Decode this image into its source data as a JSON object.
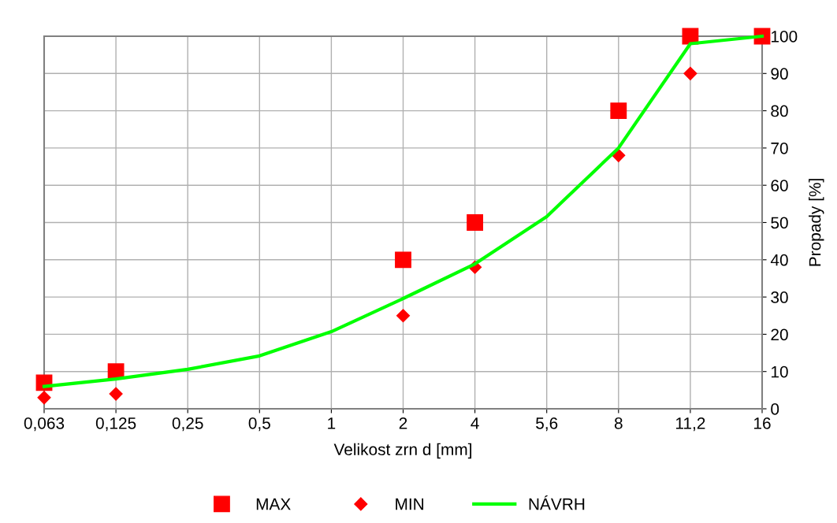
{
  "chart_data": {
    "type": "line",
    "xlabel": "Velikost zrn d [mm]",
    "ylabel": "Propady [%]",
    "categories": [
      "0,063",
      "0,125",
      "0,25",
      "0,5",
      "1",
      "2",
      "4",
      "5,6",
      "8",
      "11,2",
      "16"
    ],
    "series": [
      {
        "name": "MAX",
        "type": "scatter",
        "marker": "square",
        "color": "#ff0000",
        "values": [
          7,
          10,
          null,
          null,
          null,
          40,
          50,
          null,
          80,
          100,
          100
        ]
      },
      {
        "name": "MIN",
        "type": "scatter",
        "marker": "diamond",
        "color": "#ff0000",
        "values": [
          3,
          4,
          null,
          null,
          null,
          25,
          38,
          null,
          68,
          90,
          null
        ]
      },
      {
        "name": "NÁVRH",
        "marker": "none",
        "color": "#00ff00",
        "values": [
          6,
          8,
          10.6,
          14.2,
          20.7,
          29.6,
          38.9,
          51.6,
          70,
          98,
          100
        ]
      }
    ],
    "ylim": [
      0,
      100
    ],
    "yticks": [
      0,
      10,
      20,
      30,
      40,
      50,
      60,
      70,
      80,
      90,
      100
    ],
    "grid": true,
    "legend": "bottom"
  }
}
